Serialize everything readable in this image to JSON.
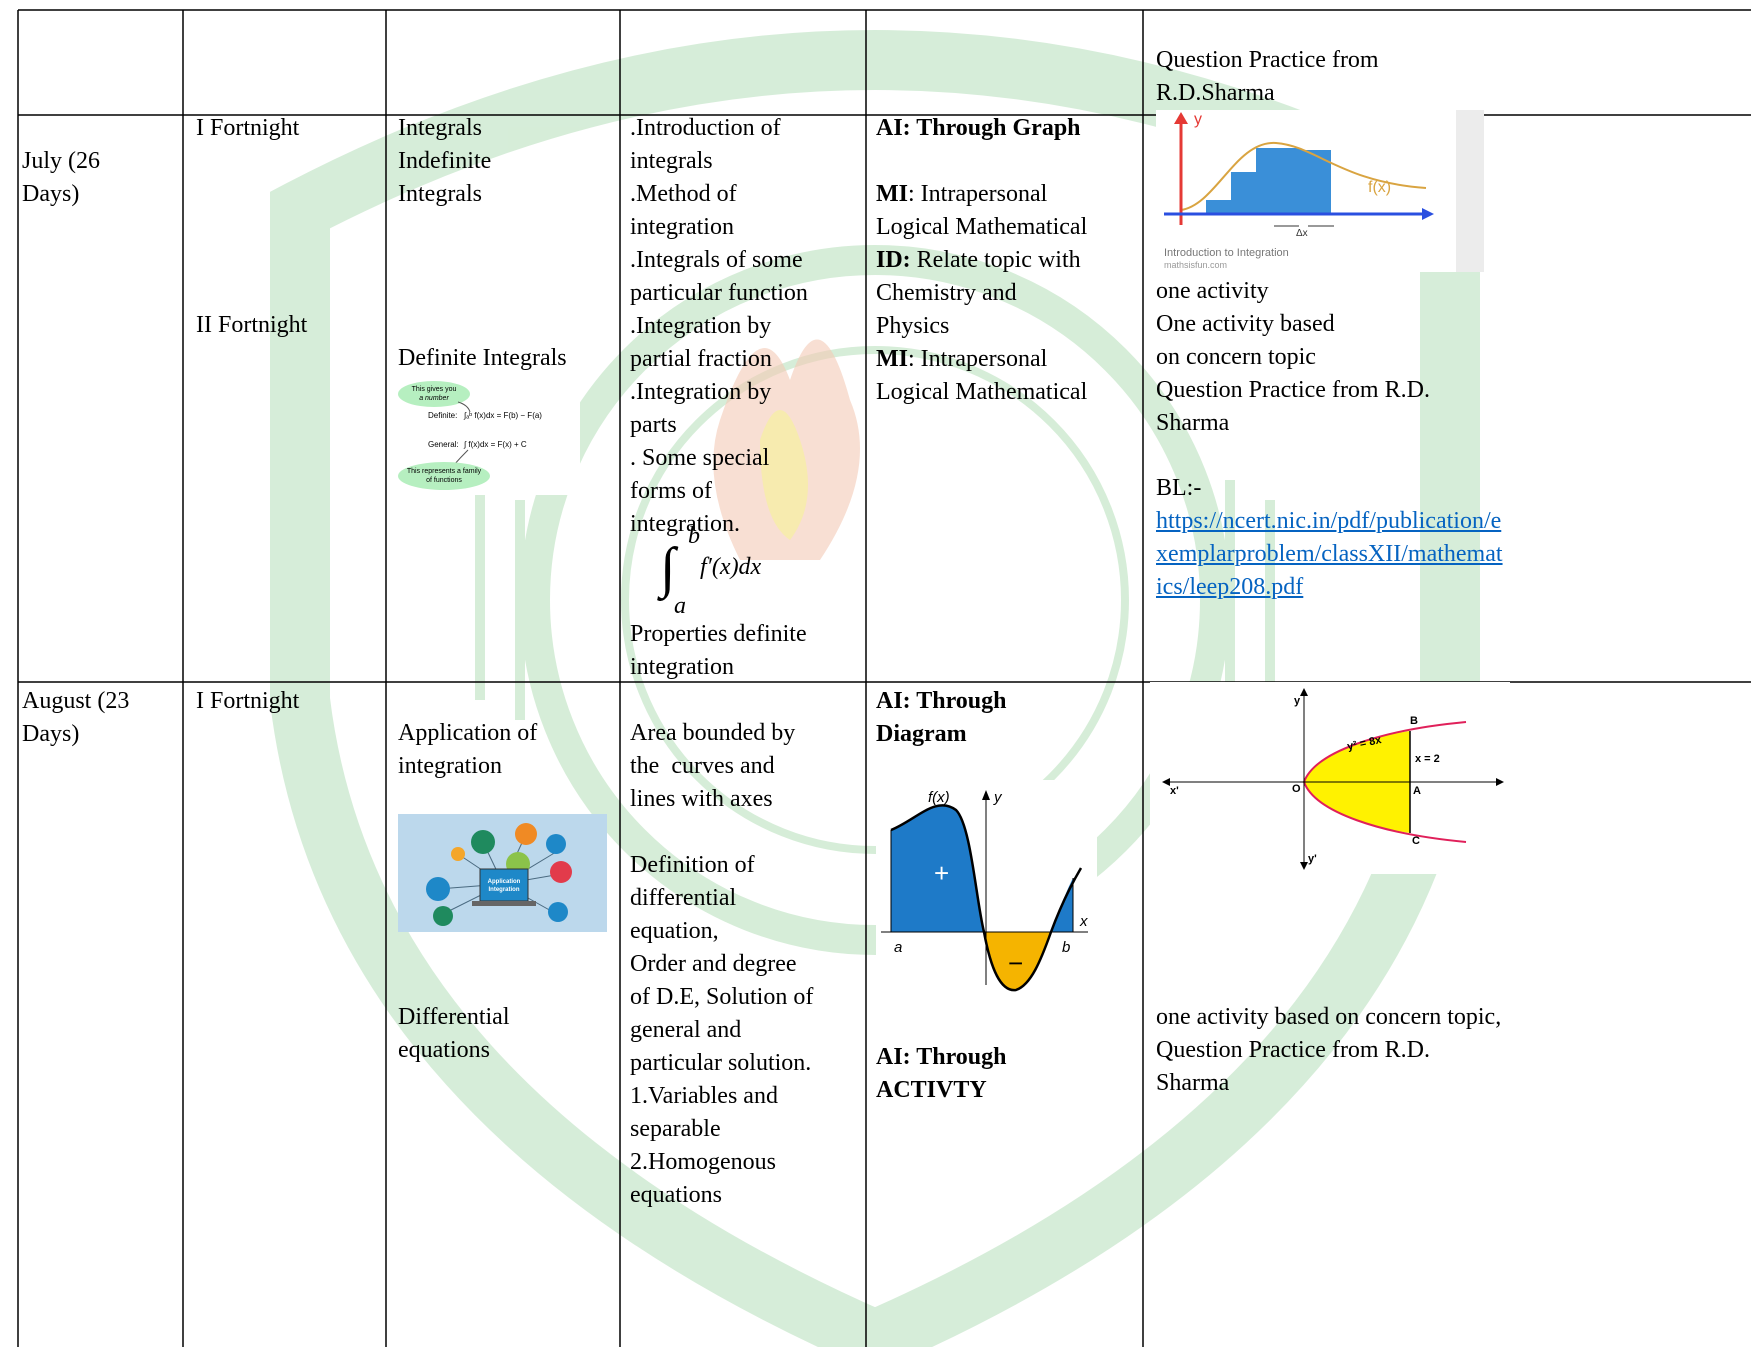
{
  "table": {
    "rows": [
      {
        "activities": [
          "Question Practice from",
          "R.D.Sharma"
        ]
      },
      {
        "month": [
          "July (26",
          "Days)"
        ],
        "fortnight_1": "I Fortnight",
        "fortnight_2": "II Fortnight",
        "topics_1": [
          "Integrals",
          "Indefinite",
          "Integrals"
        ],
        "topics_2": "Definite Integrals",
        "topic_image": {
          "note_1": [
            "This gives you",
            "a number"
          ],
          "definite": "Definite:",
          "definite_formula": "∫ₐᵇ f(x)dx = F(b) − F(a)",
          "general": "General:",
          "general_formula": "∫ f(x)dx = F(x) + C",
          "note_2": [
            "This represents a family",
            "of functions"
          ]
        },
        "content_1": [
          ".Introduction of",
          "integrals",
          ".Method of",
          "integration",
          ".Integrals of some",
          "particular function",
          ".Integration by",
          "partial fraction",
          ".Integration by",
          "parts",
          ". Some special",
          "forms of",
          "integration."
        ],
        "content_formula": {
          "integral": "∫",
          "upper": "b",
          "lower": "a",
          "integrand": "f′(x)dx"
        },
        "content_2": [
          "Properties definite",
          "integration"
        ],
        "ai": "AI: Through Graph",
        "mi_id": [
          {
            "bold": "MI",
            "text": ": Intrapersonal"
          },
          "Logical Mathematical",
          {
            "bold": "ID:",
            "text": " Relate topic with"
          },
          "Chemistry and",
          "Physics",
          {
            "bold": "MI",
            "text": ": Intrapersonal"
          },
          "Logical Mathematical"
        ],
        "activity_image": {
          "y": "y",
          "fx": "f(x)",
          "dx": "Δx",
          "caption": [
            "Introduction to Integration",
            "mathsisfun.com"
          ]
        },
        "activities": [
          "one activity",
          "One activity based",
          "on concern topic",
          "Question Practice from R.D.",
          "Sharma"
        ],
        "bl_label": "BL:-",
        "bl_link": [
          "https://ncert.nic.in/pdf/publication/e",
          "xemplarproblem/classXII/mathemat",
          "ics/leep208.pdf"
        ]
      },
      {
        "month": [
          "August (23",
          "Days)"
        ],
        "fortnight_1": "I Fortnight",
        "topics_1": [
          "Application of",
          "integration"
        ],
        "topic_image": {
          "label": [
            "Application",
            "Integration"
          ]
        },
        "topics_2": [
          "Differential",
          "equations"
        ],
        "content_1": [
          "Area bounded by",
          "the  curves and",
          "lines with axes"
        ],
        "content_2": [
          "Definition of",
          "differential",
          "equation,",
          "Order and degree",
          "of D.E, Solution of",
          "general and",
          "particular solution.",
          "1.Variables and",
          "separable",
          "2.Homogenous",
          "equations"
        ],
        "ai_1": [
          "AI: Through",
          "Diagram"
        ],
        "ai_image": {
          "fx": "f(x)",
          "y": "y",
          "plus": "+",
          "minus": "−",
          "a": "a",
          "b": "b",
          "x": "x"
        },
        "ai_2": [
          "AI: Through",
          "ACTIVTY"
        ],
        "activity_image": {
          "y": "y",
          "curve": "y² = 8x",
          "B": "B",
          "line": "x = 2",
          "x_neg": "x'",
          "O": "O",
          "A": "A",
          "C": "C",
          "y_neg": "y'"
        },
        "activities": [
          "one activity based on concern topic,",
          "Question Practice from R.D.",
          "Sharma"
        ]
      }
    ]
  }
}
